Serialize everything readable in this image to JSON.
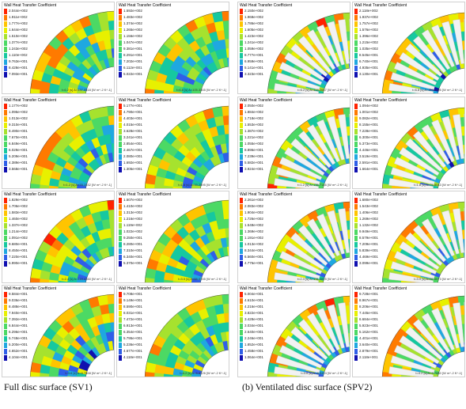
{
  "panel_title": "Wall Heat Transfer Coefficient",
  "colormap": [
    "#ff2200",
    "#ff7a00",
    "#ffc400",
    "#e8f000",
    "#a6e22e",
    "#4cd964",
    "#16c8a0",
    "#1fa8e0",
    "#2f5fe8",
    "#1010b0"
  ],
  "panels": [
    {
      "legend": [
        "2.044e+002",
        "1.911e+002",
        "1.777e+002",
        "1.644e+002",
        "1.510e+002",
        "1.377e+002",
        "1.243e+002",
        "1.110e+002",
        "9.763e+001",
        "8.428e+001",
        "7.093e+001"
      ],
      "footer": "t=6.2 [s]  A=137.0518 [W m^-2 K^-1]"
    },
    {
      "legend": [
        "1.592e+002",
        "1.483e+002",
        "1.374e+002",
        "1.265e+002",
        "1.156e+002",
        "1.047e+002",
        "9.381e+001",
        "8.291e+001",
        "7.202e+001",
        "6.112e+001",
        "5.022e+001"
      ],
      "footer": "t=6.8 [s]  A=105.3355 [W m^-2 K^-1]"
    },
    {
      "legend": [
        "2.150e+002",
        "1.968e+002",
        "1.786e+002",
        "1.605e+002",
        "1.423e+002",
        "1.241e+002",
        "1.059e+002",
        "8.777e+001",
        "6.959e+001",
        "5.141e+001",
        "3.323e+001"
      ],
      "footer": "t=6.2 [s]  A=118.2667 [W m^-2 K^-1]"
    },
    {
      "legend": [
        "2.118e+002",
        "1.937e+002",
        "1.757e+002",
        "1.576e+002",
        "1.396e+002",
        "1.215e+002",
        "1.035e+002",
        "8.545e+001",
        "6.740e+001",
        "4.935e+001",
        "3.130e+001"
      ],
      "footer": "t=6.8 [s]  A=113.2195 [W m^-2 K^-1]"
    },
    {
      "legend": [
        "1.177e+002",
        "1.095e+002",
        "1.013e+002",
        "9.310e+001",
        "8.490e+001",
        "7.670e+001",
        "6.849e+001",
        "6.029e+001",
        "5.209e+001",
        "4.389e+001",
        "3.568e+001"
      ],
      "footer": "t=1.2 [s]  A=78.1032 [W m^-2 K^-1]"
    },
    {
      "legend": [
        "5.177e+001",
        "4.790e+001",
        "4.403e+001",
        "4.015e+001",
        "3.628e+001",
        "3.241e+001",
        "2.854e+001",
        "2.467e+001",
        "2.080e+001",
        "1.692e+001",
        "1.305e+001"
      ],
      "footer": "t=1.8 [s]  A=33.2595 [W m^-2 K^-1]"
    },
    {
      "legend": [
        "2.050e+002",
        "1.884e+002",
        "1.718e+002",
        "1.553e+002",
        "1.387e+002",
        "1.221e+002",
        "1.055e+002",
        "8.896e+001",
        "7.239e+001",
        "5.582e+001",
        "3.924e+001"
      ],
      "footer": "t=1.2 [s]  A=135.7146 [W m^-2 K^-1]"
    },
    {
      "legend": [
        "1.094e+002",
        "1.001e+002",
        "9.082e+001",
        "8.155e+001",
        "7.228e+001",
        "6.300e+001",
        "5.373e+001",
        "4.446e+001",
        "3.519e+001",
        "2.591e+001",
        "1.664e+001"
      ],
      "footer": "t=1.8 [s]  A=76.8043 [W m^-2 K^-1]"
    },
    {
      "legend": [
        "1.829e+002",
        "1.706e+002",
        "1.583e+002",
        "1.460e+002",
        "1.337e+002",
        "1.214e+002",
        "1.091e+002",
        "9.680e+001",
        "8.450e+001",
        "7.220e+001",
        "5.990e+001"
      ],
      "footer": "t=2.4 [s]  A=118.4160 [W m^-2 K^-1]"
    },
    {
      "legend": [
        "1.507e+002",
        "1.410e+002",
        "1.313e+002",
        "1.216e+002",
        "1.119e+002",
        "1.022e+002",
        "9.250e+001",
        "8.280e+001",
        "7.310e+001",
        "6.340e+001",
        "5.370e+001"
      ],
      "footer": "t=3.0 [s]  A=88.0155 [W m^-2 K^-1]"
    },
    {
      "legend": [
        "2.261e+002",
        "2.083e+002",
        "1.904e+002",
        "1.726e+002",
        "1.548e+002",
        "1.369e+002",
        "1.191e+002",
        "1.013e+002",
        "8.344e+001",
        "6.560e+001",
        "4.776e+001"
      ],
      "footer": "t=2.4 [s]  A=131.4825 [W m^-2 K^-1]"
    },
    {
      "legend": [
        "1.680e+002",
        "1.543e+002",
        "1.406e+002",
        "1.269e+002",
        "1.132e+002",
        "9.949e+001",
        "8.579e+001",
        "7.209e+001",
        "5.839e+001",
        "4.469e+001",
        "3.099e+001"
      ],
      "footer": "t=3.0 [s]  A=92.6573 [W m^-2 K^-1]"
    },
    {
      "legend": [
        "9.584e+001",
        "9.036e+001",
        "8.488e+001",
        "7.940e+001",
        "7.392e+001",
        "6.844e+001",
        "6.296e+001",
        "5.748e+001",
        "5.200e+001",
        "4.652e+001",
        "4.104e+001"
      ],
      "footer": "t=3.6 [s]  A=6.7858 [W m^-2 K^-1]"
    },
    {
      "legend": [
        "9.708e+001",
        "9.149e+001",
        "8.590e+001",
        "8.031e+001",
        "7.472e+001",
        "6.913e+001",
        "6.354e+001",
        "5.795e+001",
        "5.236e+001",
        "4.677e+001",
        "4.118e+001"
      ],
      "footer": "t=4.2 [s]  A=6.8126 [W m^-2 K^-1]"
    },
    {
      "legend": [
        "5.004e+001",
        "4.610e+001",
        "4.216e+001",
        "3.822e+001",
        "3.428e+001",
        "3.034e+001",
        "2.640e+001",
        "2.246e+001",
        "1.852e+001",
        "1.458e+001",
        "1.064e+001"
      ],
      "footer": "t=3.6 [s]  A=8.5424 [W m^-2 K^-1]"
    },
    {
      "legend": [
        "9.728e+001",
        "8.967e+001",
        "8.206e+001",
        "7.445e+001",
        "6.684e+001",
        "5.923e+001",
        "5.162e+001",
        "4.401e+001",
        "3.640e+001",
        "2.879e+001",
        "2.118e+001"
      ],
      "footer": "t=4.2 [s]  A=9.7680 [W m^-2 K^-1]"
    }
  ],
  "captions": {
    "left": "Full disc surface (SV1)",
    "right": "(b) Ventilated disc surface (SPV2)"
  }
}
